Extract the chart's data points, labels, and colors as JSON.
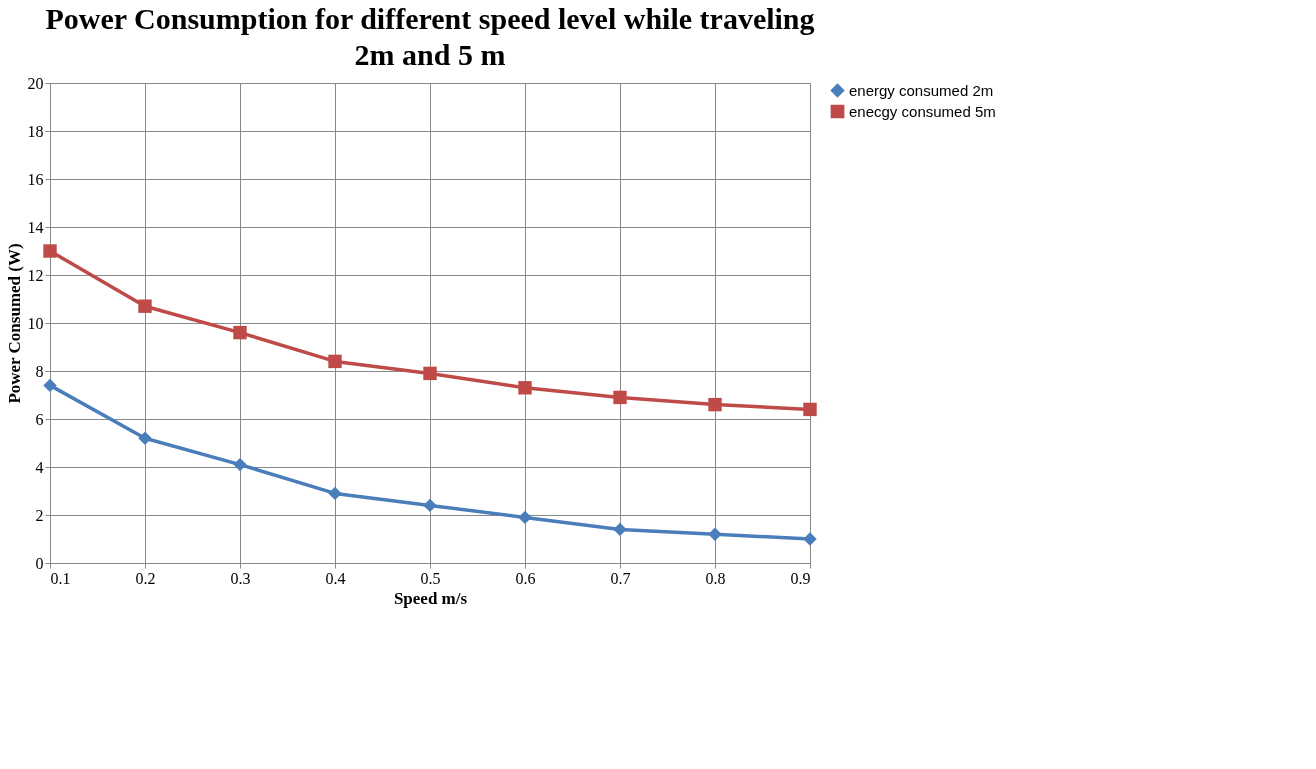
{
  "chart_data": {
    "type": "line",
    "title": "Power Consumption for different speed level while traveling 2m and 5 m",
    "xlabel": "Speed m/s",
    "ylabel": "Power Consumed (W)",
    "categories": [
      "0.1",
      "0.2",
      "0.3",
      "0.4",
      "0.5",
      "0.6",
      "0.7",
      "0.8",
      "0.9"
    ],
    "series": [
      {
        "name": "energy consumed 2m",
        "color": "#4a7ebb",
        "marker": "diamond",
        "values": [
          7.4,
          5.2,
          4.1,
          2.9,
          2.4,
          1.9,
          1.4,
          1.2,
          1.0
        ]
      },
      {
        "name": "enecgy consumed 5m",
        "color": "#be4b48",
        "marker": "square",
        "values": [
          13.0,
          10.7,
          9.6,
          8.4,
          7.9,
          7.3,
          6.9,
          6.6,
          6.4
        ]
      }
    ],
    "ylim": [
      0,
      20
    ],
    "yticks": [
      0,
      2,
      4,
      6,
      8,
      10,
      12,
      14,
      16,
      18,
      20
    ],
    "grid": true,
    "legend": "right",
    "line_style": "solid"
  }
}
